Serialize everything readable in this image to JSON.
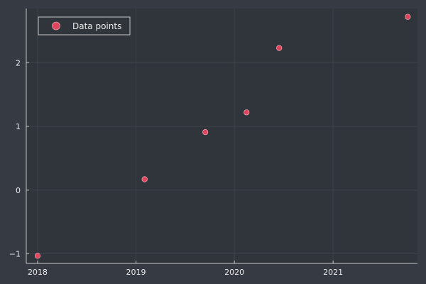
{
  "colors": {
    "background": "#363a42",
    "plot_background": "#30343b",
    "grid": "#41454d",
    "axis": "#c8c8c8",
    "text": "#eaeaea",
    "marker": "#e0455e",
    "marker_edge": "#f3c0c8"
  },
  "chart_data": {
    "type": "scatter",
    "title": "",
    "xlabel": "",
    "ylabel": "",
    "x_axis_type": "date",
    "grid": true,
    "legend_position": "top-left",
    "xlim": [
      "2017-11-20",
      "2021-11-10"
    ],
    "ylim": [
      -1.15,
      2.85
    ],
    "x_ticks": [
      "2018-01-01",
      "2019-01-01",
      "2020-01-01",
      "2021-01-01"
    ],
    "x_tick_labels": [
      "2018",
      "2019",
      "2020",
      "2021"
    ],
    "y_ticks": [
      -1,
      0,
      1,
      2
    ],
    "y_tick_labels": [
      "−1",
      "0",
      "1",
      "2"
    ],
    "series": [
      {
        "name": "Data points",
        "x": [
          "2018-01-01",
          "2019-02-02",
          "2019-09-15",
          "2020-02-15",
          "2020-06-15",
          "2021-10-05"
        ],
        "y": [
          -1.03,
          0.17,
          0.91,
          1.22,
          2.23,
          2.72
        ]
      }
    ]
  }
}
